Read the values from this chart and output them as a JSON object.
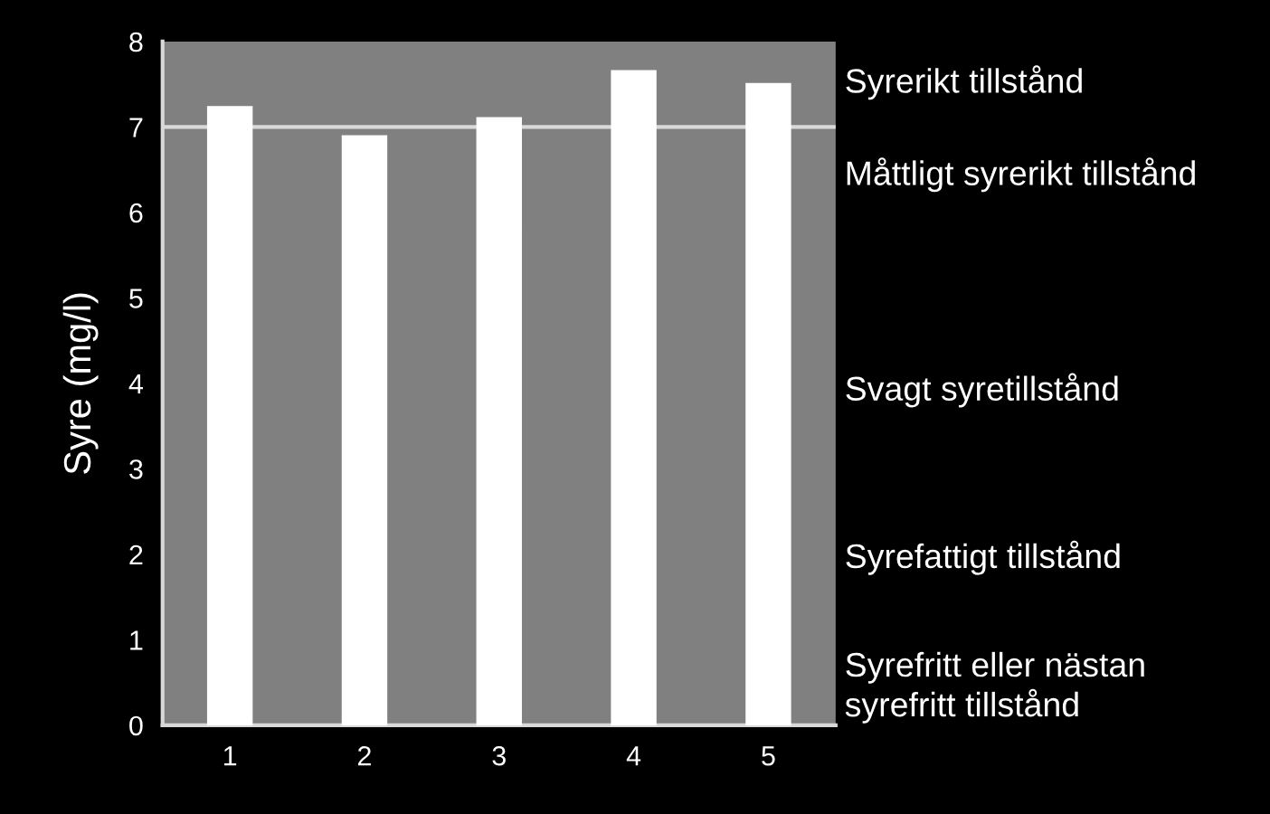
{
  "chart_data": {
    "type": "bar",
    "ylabel": "Syre (mg/l)",
    "categories": [
      "1",
      "2",
      "3",
      "4",
      "5"
    ],
    "values": [
      7.23,
      6.89,
      7.1,
      7.65,
      7.5
    ],
    "color": "#ffffff",
    "ylim": [
      0,
      8
    ],
    "yticks": [
      0,
      1,
      2,
      3,
      4,
      5,
      6,
      7,
      8
    ],
    "grid": false,
    "ref_lines": [
      {
        "axis": "y",
        "value": 7,
        "color": "#d9d9d9"
      }
    ],
    "annotations": [
      "Syrerikt tillstånd",
      "Måttligt syrerikt tillstånd",
      "Svagt syretillstånd",
      "Syrefattigt tillstånd",
      "Syrefritt eller nästan\nsyrefritt tillstånd"
    ]
  }
}
